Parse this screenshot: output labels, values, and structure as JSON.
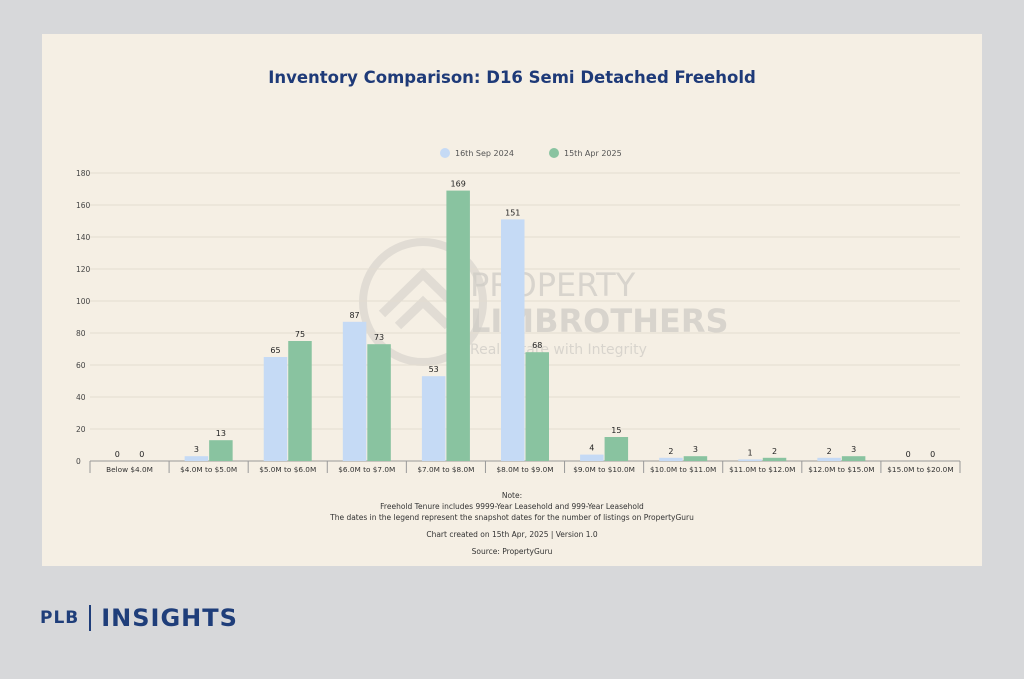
{
  "chart_data": {
    "type": "bar",
    "title": "Inventory Comparison: D16 Semi Detached Freehold",
    "categories": [
      "Below $4.0M",
      "$4.0M to $5.0M",
      "$5.0M to $6.0M",
      "$6.0M to $7.0M",
      "$7.0M to $8.0M",
      "$8.0M to $9.0M",
      "$9.0M to $10.0M",
      "$10.0M to $11.0M",
      "$11.0M to $12.0M",
      "$12.0M to $15.0M",
      "$15.0M to $20.0M"
    ],
    "series": [
      {
        "name": "16th Sep 2024",
        "color": "#c5daf5",
        "values": [
          0,
          3,
          65,
          87,
          53,
          151,
          4,
          2,
          1,
          2,
          0
        ]
      },
      {
        "name": "15th Apr 2025",
        "color": "#89c3a0",
        "values": [
          0,
          13,
          75,
          73,
          169,
          68,
          15,
          3,
          2,
          3,
          0
        ]
      }
    ],
    "ylim": [
      0,
      180
    ],
    "yticks": [
      0,
      20,
      40,
      60,
      80,
      100,
      120,
      140,
      160,
      180
    ],
    "grid": true,
    "legend_position": "top-center"
  },
  "watermark": {
    "line1": "PROPERTY",
    "line2": "LIMBROTHERS",
    "tagline": "Real Estate with Integrity"
  },
  "notes": {
    "heading": "Note:",
    "line1": "Freehold Tenure includes 9999-Year Leasehold and 999-Year Leasehold",
    "line2": "The dates in the legend represent the snapshot dates for the number of listings on PropertyGuru",
    "created": "Chart created on 15th Apr, 2025 | Version 1.0",
    "source": "Source: PropertyGuru"
  },
  "brand": {
    "left": "PLB",
    "right": "INSIGHTS"
  }
}
